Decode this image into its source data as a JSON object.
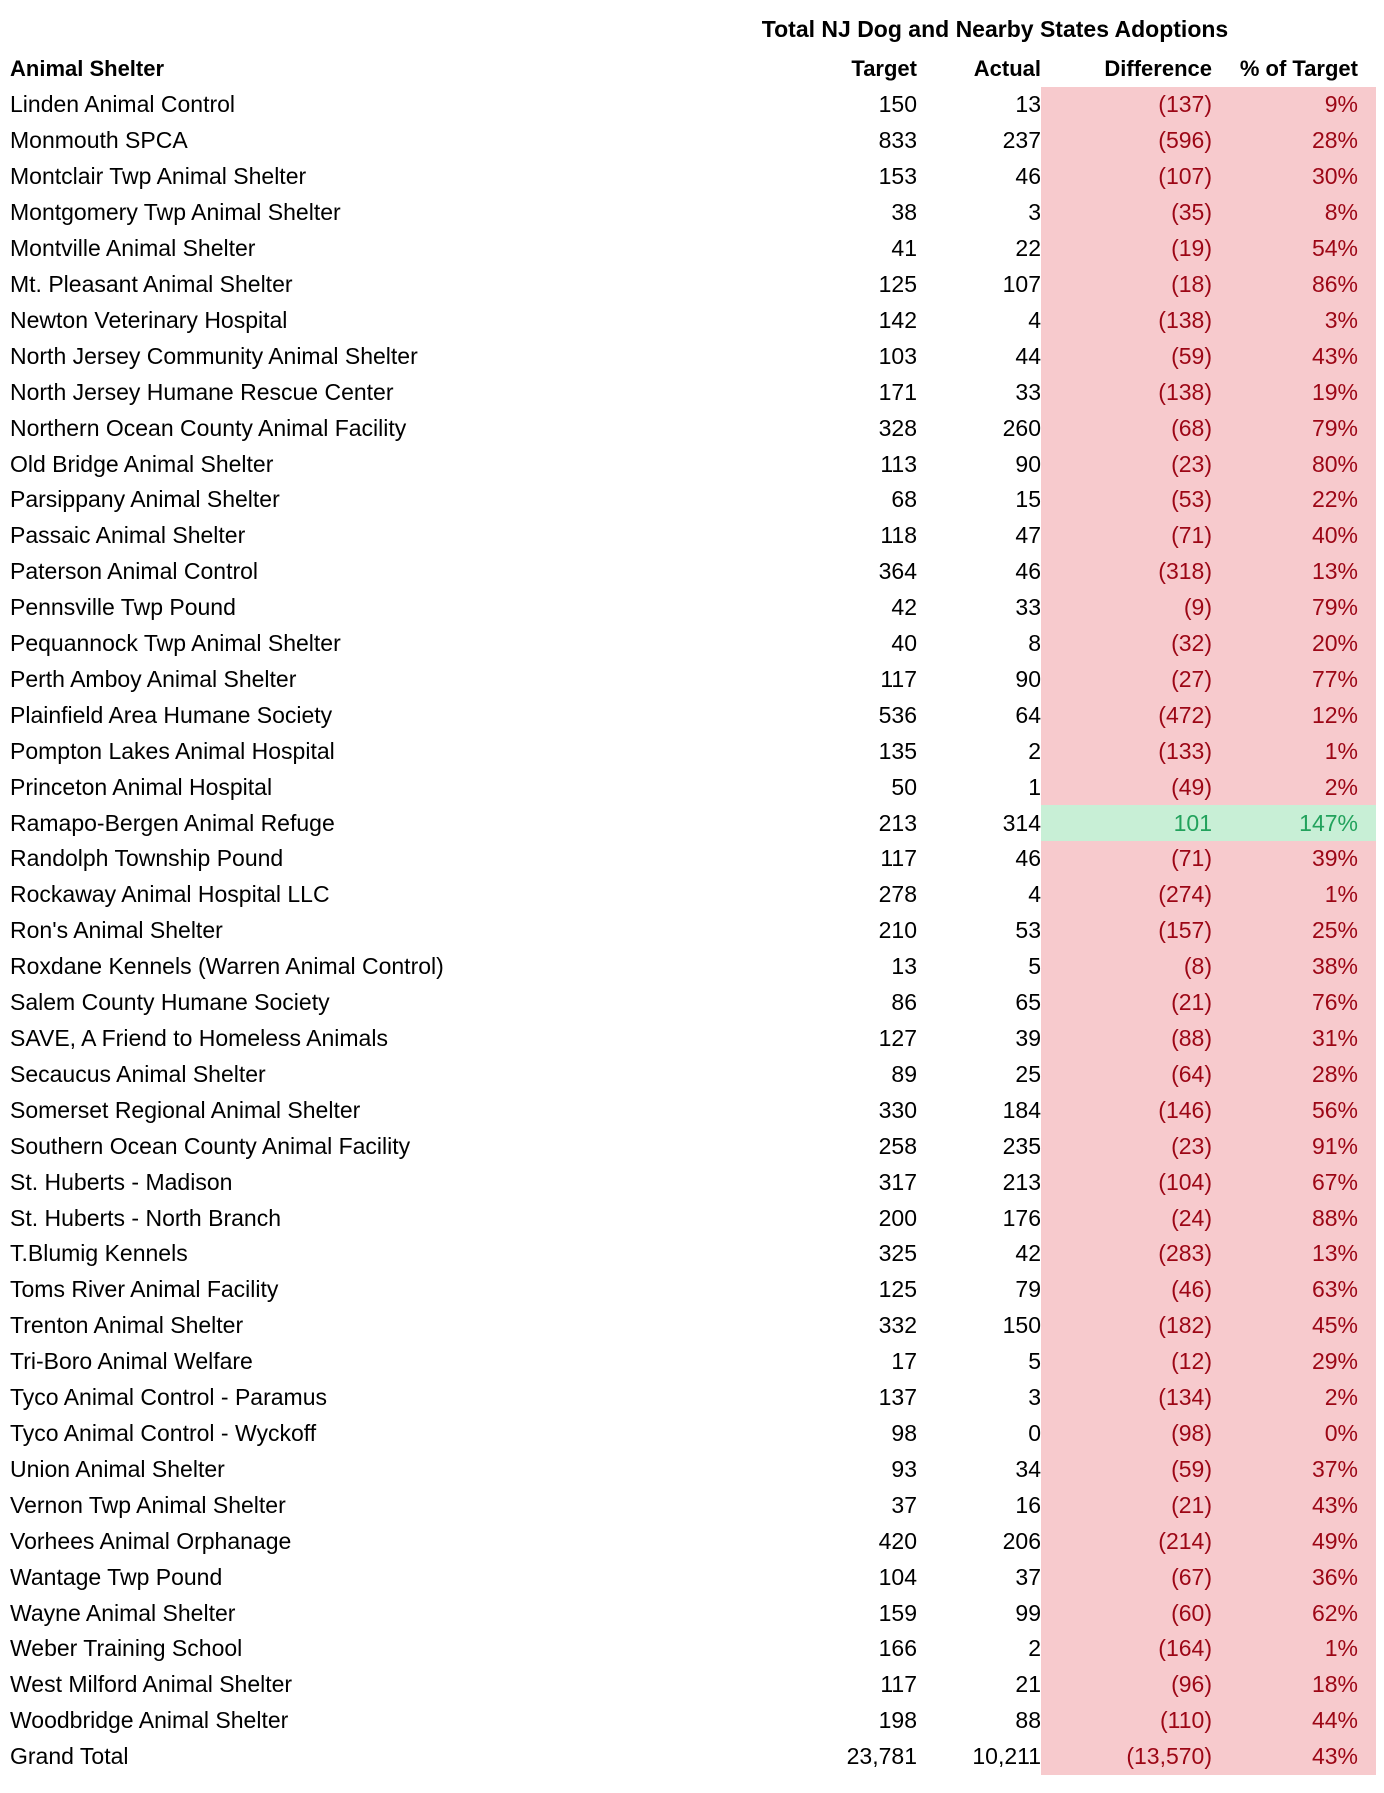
{
  "colors": {
    "negative_bg": "#F7CACD",
    "negative_text": "#9C0615",
    "positive_bg": "#C8EFD6",
    "positive_text": "#22A25C",
    "body_text": "#000000",
    "background": "#FFFFFF"
  },
  "chart_data": {
    "type": "table",
    "title": "Total NJ Dog and Nearby States Adoptions",
    "columns": [
      "Animal Shelter",
      "Target",
      "Actual",
      "Difference",
      "% of Target"
    ],
    "rows": [
      {
        "name": "Linden Animal Control",
        "target": "150",
        "actual": "13",
        "difference": "(137)",
        "pct_of_target": "9%",
        "status": "negative"
      },
      {
        "name": "Monmouth SPCA",
        "target": "833",
        "actual": "237",
        "difference": "(596)",
        "pct_of_target": "28%",
        "status": "negative"
      },
      {
        "name": "Montclair Twp Animal Shelter",
        "target": "153",
        "actual": "46",
        "difference": "(107)",
        "pct_of_target": "30%",
        "status": "negative"
      },
      {
        "name": "Montgomery Twp Animal Shelter",
        "target": "38",
        "actual": "3",
        "difference": "(35)",
        "pct_of_target": "8%",
        "status": "negative"
      },
      {
        "name": "Montville Animal Shelter",
        "target": "41",
        "actual": "22",
        "difference": "(19)",
        "pct_of_target": "54%",
        "status": "negative"
      },
      {
        "name": "Mt. Pleasant Animal Shelter",
        "target": "125",
        "actual": "107",
        "difference": "(18)",
        "pct_of_target": "86%",
        "status": "negative"
      },
      {
        "name": "Newton Veterinary Hospital",
        "target": "142",
        "actual": "4",
        "difference": "(138)",
        "pct_of_target": "3%",
        "status": "negative"
      },
      {
        "name": "North Jersey Community Animal Shelter",
        "target": "103",
        "actual": "44",
        "difference": "(59)",
        "pct_of_target": "43%",
        "status": "negative"
      },
      {
        "name": "North Jersey Humane Rescue Center",
        "target": "171",
        "actual": "33",
        "difference": "(138)",
        "pct_of_target": "19%",
        "status": "negative"
      },
      {
        "name": "Northern Ocean County Animal Facility",
        "target": "328",
        "actual": "260",
        "difference": "(68)",
        "pct_of_target": "79%",
        "status": "negative"
      },
      {
        "name": "Old Bridge Animal Shelter",
        "target": "113",
        "actual": "90",
        "difference": "(23)",
        "pct_of_target": "80%",
        "status": "negative"
      },
      {
        "name": "Parsippany Animal Shelter",
        "target": "68",
        "actual": "15",
        "difference": "(53)",
        "pct_of_target": "22%",
        "status": "negative"
      },
      {
        "name": "Passaic Animal Shelter",
        "target": "118",
        "actual": "47",
        "difference": "(71)",
        "pct_of_target": "40%",
        "status": "negative"
      },
      {
        "name": "Paterson Animal Control",
        "target": "364",
        "actual": "46",
        "difference": "(318)",
        "pct_of_target": "13%",
        "status": "negative"
      },
      {
        "name": "Pennsville Twp Pound",
        "target": "42",
        "actual": "33",
        "difference": "(9)",
        "pct_of_target": "79%",
        "status": "negative"
      },
      {
        "name": "Pequannock Twp Animal Shelter",
        "target": "40",
        "actual": "8",
        "difference": "(32)",
        "pct_of_target": "20%",
        "status": "negative"
      },
      {
        "name": "Perth Amboy Animal Shelter",
        "target": "117",
        "actual": "90",
        "difference": "(27)",
        "pct_of_target": "77%",
        "status": "negative"
      },
      {
        "name": "Plainfield Area Humane Society",
        "target": "536",
        "actual": "64",
        "difference": "(472)",
        "pct_of_target": "12%",
        "status": "negative"
      },
      {
        "name": "Pompton Lakes Animal Hospital",
        "target": "135",
        "actual": "2",
        "difference": "(133)",
        "pct_of_target": "1%",
        "status": "negative"
      },
      {
        "name": "Princeton Animal Hospital",
        "target": "50",
        "actual": "1",
        "difference": "(49)",
        "pct_of_target": "2%",
        "status": "negative"
      },
      {
        "name": "Ramapo-Bergen Animal Refuge",
        "target": "213",
        "actual": "314",
        "difference": "101",
        "pct_of_target": "147%",
        "status": "positive"
      },
      {
        "name": "Randolph Township Pound",
        "target": "117",
        "actual": "46",
        "difference": "(71)",
        "pct_of_target": "39%",
        "status": "negative"
      },
      {
        "name": "Rockaway Animal Hospital LLC",
        "target": "278",
        "actual": "4",
        "difference": "(274)",
        "pct_of_target": "1%",
        "status": "negative"
      },
      {
        "name": "Ron's Animal Shelter",
        "target": "210",
        "actual": "53",
        "difference": "(157)",
        "pct_of_target": "25%",
        "status": "negative"
      },
      {
        "name": "Roxdane Kennels (Warren Animal Control)",
        "target": "13",
        "actual": "5",
        "difference": "(8)",
        "pct_of_target": "38%",
        "status": "negative"
      },
      {
        "name": "Salem County Humane Society",
        "target": "86",
        "actual": "65",
        "difference": "(21)",
        "pct_of_target": "76%",
        "status": "negative"
      },
      {
        "name": "SAVE, A Friend to Homeless Animals",
        "target": "127",
        "actual": "39",
        "difference": "(88)",
        "pct_of_target": "31%",
        "status": "negative"
      },
      {
        "name": "Secaucus Animal Shelter",
        "target": "89",
        "actual": "25",
        "difference": "(64)",
        "pct_of_target": "28%",
        "status": "negative"
      },
      {
        "name": "Somerset Regional Animal Shelter",
        "target": "330",
        "actual": "184",
        "difference": "(146)",
        "pct_of_target": "56%",
        "status": "negative"
      },
      {
        "name": "Southern Ocean County Animal Facility",
        "target": "258",
        "actual": "235",
        "difference": "(23)",
        "pct_of_target": "91%",
        "status": "negative"
      },
      {
        "name": "St. Huberts - Madison",
        "target": "317",
        "actual": "213",
        "difference": "(104)",
        "pct_of_target": "67%",
        "status": "negative"
      },
      {
        "name": "St. Huberts - North Branch",
        "target": "200",
        "actual": "176",
        "difference": "(24)",
        "pct_of_target": "88%",
        "status": "negative"
      },
      {
        "name": "T.Blumig Kennels",
        "target": "325",
        "actual": "42",
        "difference": "(283)",
        "pct_of_target": "13%",
        "status": "negative"
      },
      {
        "name": "Toms River Animal Facility",
        "target": "125",
        "actual": "79",
        "difference": "(46)",
        "pct_of_target": "63%",
        "status": "negative"
      },
      {
        "name": "Trenton Animal Shelter",
        "target": "332",
        "actual": "150",
        "difference": "(182)",
        "pct_of_target": "45%",
        "status": "negative"
      },
      {
        "name": "Tri-Boro Animal Welfare",
        "target": "17",
        "actual": "5",
        "difference": "(12)",
        "pct_of_target": "29%",
        "status": "negative"
      },
      {
        "name": "Tyco Animal Control - Paramus",
        "target": "137",
        "actual": "3",
        "difference": "(134)",
        "pct_of_target": "2%",
        "status": "negative"
      },
      {
        "name": "Tyco Animal Control - Wyckoff",
        "target": "98",
        "actual": "0",
        "difference": "(98)",
        "pct_of_target": "0%",
        "status": "negative"
      },
      {
        "name": "Union Animal Shelter",
        "target": "93",
        "actual": "34",
        "difference": "(59)",
        "pct_of_target": "37%",
        "status": "negative"
      },
      {
        "name": "Vernon Twp Animal Shelter",
        "target": "37",
        "actual": "16",
        "difference": "(21)",
        "pct_of_target": "43%",
        "status": "negative"
      },
      {
        "name": "Vorhees Animal Orphanage",
        "target": "420",
        "actual": "206",
        "difference": "(214)",
        "pct_of_target": "49%",
        "status": "negative"
      },
      {
        "name": "Wantage Twp Pound",
        "target": "104",
        "actual": "37",
        "difference": "(67)",
        "pct_of_target": "36%",
        "status": "negative"
      },
      {
        "name": "Wayne Animal Shelter",
        "target": "159",
        "actual": "99",
        "difference": "(60)",
        "pct_of_target": "62%",
        "status": "negative"
      },
      {
        "name": "Weber Training School",
        "target": "166",
        "actual": "2",
        "difference": "(164)",
        "pct_of_target": "1%",
        "status": "negative"
      },
      {
        "name": "West Milford Animal Shelter",
        "target": "117",
        "actual": "21",
        "difference": "(96)",
        "pct_of_target": "18%",
        "status": "negative"
      },
      {
        "name": "Woodbridge Animal Shelter",
        "target": "198",
        "actual": "88",
        "difference": "(110)",
        "pct_of_target": "44%",
        "status": "negative"
      },
      {
        "name": "Grand Total",
        "target": "23,781",
        "actual": "10,211",
        "difference": "(13,570)",
        "pct_of_target": "43%",
        "status": "negative",
        "is_total": true
      }
    ]
  }
}
